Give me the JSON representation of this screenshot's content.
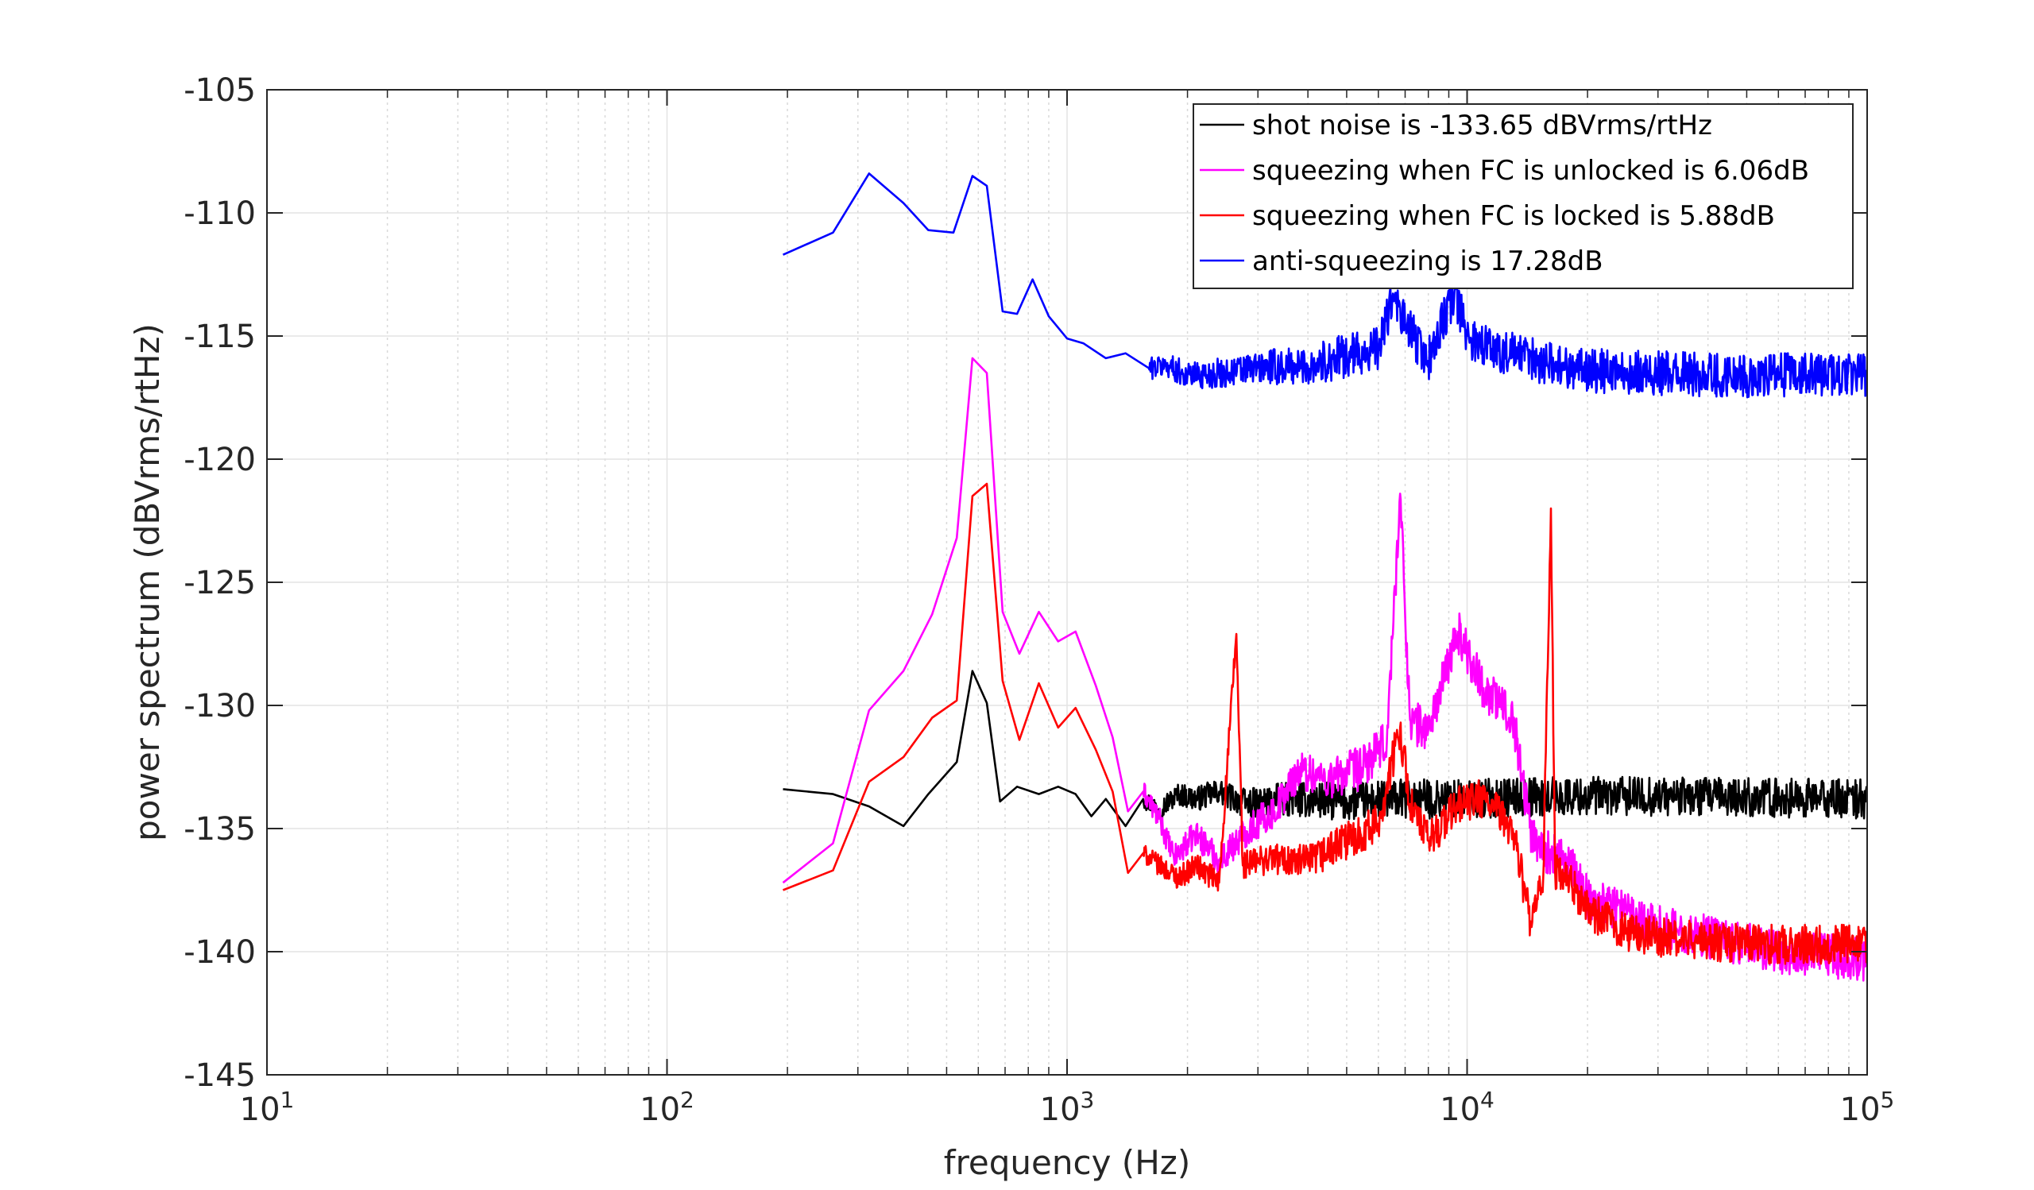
{
  "chart_data": {
    "type": "line",
    "xlabel": "frequency (Hz)",
    "ylabel": "power spectrum (dBVrms/rtHz)",
    "xscale": "log",
    "xlim": [
      10,
      100000
    ],
    "ylim": [
      -145,
      -105
    ],
    "xticks": [
      {
        "value": 10,
        "base": "10",
        "exp": "1"
      },
      {
        "value": 100,
        "base": "10",
        "exp": "2"
      },
      {
        "value": 1000,
        "base": "10",
        "exp": "3"
      },
      {
        "value": 10000,
        "base": "10",
        "exp": "4"
      },
      {
        "value": 100000,
        "base": "10",
        "exp": "5"
      }
    ],
    "yticks": [
      -105,
      -110,
      -115,
      -120,
      -125,
      -130,
      -135,
      -140,
      -145
    ],
    "grid": true,
    "legend_position": "top-right",
    "series": [
      {
        "name": "shot noise is -133.65 dBVrms/rtHz",
        "color": "#000000",
        "noise": 0.8,
        "points": [
          [
            195,
            -133.4
          ],
          [
            260,
            -133.6
          ],
          [
            320,
            -134.1
          ],
          [
            390,
            -134.9
          ],
          [
            450,
            -133.6
          ],
          [
            530,
            -132.3
          ],
          [
            580,
            -128.6
          ],
          [
            630,
            -129.9
          ],
          [
            680,
            -133.9
          ],
          [
            750,
            -133.3
          ],
          [
            850,
            -133.6
          ],
          [
            950,
            -133.3
          ],
          [
            1050,
            -133.6
          ],
          [
            1150,
            -134.5
          ],
          [
            1250,
            -133.8
          ],
          [
            1400,
            -134.9
          ],
          [
            1550,
            -133.8
          ],
          [
            1700,
            -134.2
          ],
          [
            1900,
            -133.6
          ],
          [
            2100,
            -133.8
          ],
          [
            2400,
            -133.5
          ],
          [
            2800,
            -134.0
          ],
          [
            3500,
            -133.8
          ],
          [
            5000,
            -133.9
          ],
          [
            7000,
            -133.8
          ],
          [
            10000,
            -133.8
          ],
          [
            15000,
            -133.7
          ],
          [
            30000,
            -133.7
          ],
          [
            100000,
            -133.8
          ]
        ]
      },
      {
        "name": "squeezing when FC is unlocked is 6.06dB",
        "color": "#ff00ff",
        "noise": 0.9,
        "points": [
          [
            195,
            -137.2
          ],
          [
            260,
            -135.6
          ],
          [
            320,
            -130.2
          ],
          [
            390,
            -128.6
          ],
          [
            460,
            -126.3
          ],
          [
            530,
            -123.2
          ],
          [
            580,
            -115.9
          ],
          [
            630,
            -116.5
          ],
          [
            690,
            -126.2
          ],
          [
            760,
            -127.9
          ],
          [
            850,
            -126.2
          ],
          [
            950,
            -127.4
          ],
          [
            1050,
            -127.0
          ],
          [
            1180,
            -129.2
          ],
          [
            1300,
            -131.3
          ],
          [
            1420,
            -134.3
          ],
          [
            1550,
            -133.5
          ],
          [
            1700,
            -134.6
          ],
          [
            1850,
            -136.2
          ],
          [
            2100,
            -135.2
          ],
          [
            2400,
            -136.3
          ],
          [
            2800,
            -135.1
          ],
          [
            3300,
            -134.3
          ],
          [
            3800,
            -132.6
          ],
          [
            4500,
            -133.0
          ],
          [
            5500,
            -132.5
          ],
          [
            6300,
            -131.5
          ],
          [
            6800,
            -121.4
          ],
          [
            7200,
            -130.6
          ],
          [
            8000,
            -131.0
          ],
          [
            9500,
            -127.0
          ],
          [
            11000,
            -129.3
          ],
          [
            13000,
            -130.4
          ],
          [
            14500,
            -135.3
          ],
          [
            16000,
            -136.0
          ],
          [
            18000,
            -136.5
          ],
          [
            20000,
            -137.8
          ],
          [
            25000,
            -138.3
          ],
          [
            30000,
            -139.0
          ],
          [
            40000,
            -139.4
          ],
          [
            60000,
            -140.0
          ],
          [
            100000,
            -140.3
          ]
        ]
      },
      {
        "name": "squeezing when FC is locked is 5.88dB",
        "color": "#ff0000",
        "noise": 0.8,
        "points": [
          [
            195,
            -137.5
          ],
          [
            260,
            -136.7
          ],
          [
            320,
            -133.1
          ],
          [
            390,
            -132.1
          ],
          [
            460,
            -130.5
          ],
          [
            530,
            -129.8
          ],
          [
            580,
            -121.5
          ],
          [
            630,
            -121.0
          ],
          [
            690,
            -129.0
          ],
          [
            760,
            -131.4
          ],
          [
            850,
            -129.1
          ],
          [
            950,
            -130.9
          ],
          [
            1050,
            -130.1
          ],
          [
            1180,
            -131.8
          ],
          [
            1300,
            -133.5
          ],
          [
            1420,
            -136.8
          ],
          [
            1550,
            -136.0
          ],
          [
            1700,
            -136.5
          ],
          [
            1900,
            -137.0
          ],
          [
            2100,
            -136.5
          ],
          [
            2400,
            -137.2
          ],
          [
            2650,
            -127.1
          ],
          [
            2750,
            -136.5
          ],
          [
            3200,
            -136.2
          ],
          [
            4000,
            -136.4
          ],
          [
            5000,
            -135.5
          ],
          [
            6000,
            -134.8
          ],
          [
            6800,
            -130.9
          ],
          [
            7200,
            -134.0
          ],
          [
            8000,
            -135.5
          ],
          [
            9500,
            -134.0
          ],
          [
            11000,
            -133.8
          ],
          [
            13000,
            -135.0
          ],
          [
            14500,
            -139.0
          ],
          [
            15500,
            -137.0
          ],
          [
            16200,
            -122.0
          ],
          [
            16600,
            -136.8
          ],
          [
            18000,
            -137.2
          ],
          [
            20000,
            -138.3
          ],
          [
            25000,
            -139.2
          ],
          [
            30000,
            -139.4
          ],
          [
            40000,
            -139.6
          ],
          [
            60000,
            -139.7
          ],
          [
            100000,
            -139.7
          ]
        ]
      },
      {
        "name": "anti-squeezing is 17.28dB",
        "color": "#0000ff",
        "noise": 0.9,
        "points": [
          [
            195,
            -111.7
          ],
          [
            260,
            -110.8
          ],
          [
            320,
            -108.4
          ],
          [
            390,
            -109.6
          ],
          [
            450,
            -110.7
          ],
          [
            520,
            -110.8
          ],
          [
            580,
            -108.5
          ],
          [
            630,
            -108.9
          ],
          [
            690,
            -114.0
          ],
          [
            750,
            -114.1
          ],
          [
            820,
            -112.7
          ],
          [
            900,
            -114.2
          ],
          [
            1000,
            -115.1
          ],
          [
            1100,
            -115.3
          ],
          [
            1250,
            -115.9
          ],
          [
            1400,
            -115.7
          ],
          [
            1600,
            -116.3
          ],
          [
            1800,
            -116.2
          ],
          [
            2000,
            -116.6
          ],
          [
            2500,
            -116.5
          ],
          [
            3000,
            -116.3
          ],
          [
            4000,
            -116.2
          ],
          [
            5000,
            -115.8
          ],
          [
            6000,
            -115.5
          ],
          [
            6500,
            -113.5
          ],
          [
            7000,
            -114.5
          ],
          [
            8000,
            -116.0
          ],
          [
            9300,
            -113.2
          ],
          [
            10000,
            -115.0
          ],
          [
            12000,
            -115.6
          ],
          [
            15000,
            -116.0
          ],
          [
            20000,
            -116.4
          ],
          [
            30000,
            -116.5
          ],
          [
            50000,
            -116.6
          ],
          [
            100000,
            -116.6
          ]
        ]
      }
    ]
  }
}
